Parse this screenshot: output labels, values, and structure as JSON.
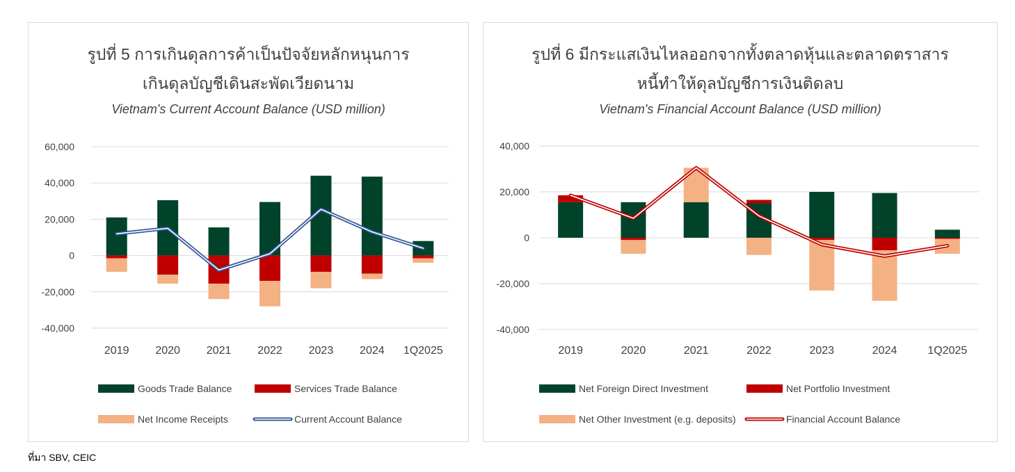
{
  "source_note": "ที่มา SBV, CEIC",
  "chart_data": [
    {
      "type": "bar",
      "stacked": true,
      "title_line1": "รูปที่ 5 การเกินดุลการค้าเป็นปัจจัยหลักหนุนการ",
      "title_line2": "เกินดุลบัญชีเดินสะพัดเวียดนาม",
      "subtitle": "Vietnam's Current Account Balance (USD million)",
      "xlabel": "",
      "ylabel": "",
      "categories": [
        "2019",
        "2020",
        "2021",
        "2022",
        "2023",
        "2024",
        "1Q2025"
      ],
      "ylim": [
        -40000,
        60000
      ],
      "yticks": [
        -40000,
        -20000,
        0,
        20000,
        40000,
        60000
      ],
      "ytick_labels": [
        "-40,000",
        "-20,000",
        "0",
        "20,000",
        "40,000",
        "60,000"
      ],
      "grid": true,
      "legend_position": "bottom",
      "series": [
        {
          "name": "Goods Trade Balance",
          "kind": "bar",
          "color": "#00432a",
          "values": [
            21000,
            30500,
            15500,
            29500,
            44000,
            43500,
            8000
          ]
        },
        {
          "name": "Services Trade Balance",
          "kind": "bar",
          "color": "#c00000",
          "values": [
            -1500,
            -10500,
            -15500,
            -14000,
            -9000,
            -10000,
            -1500
          ]
        },
        {
          "name": "Net Income Receipts",
          "kind": "bar",
          "color": "#f4b183",
          "values": [
            -7500,
            -5000,
            -8500,
            -14000,
            -9000,
            -3000,
            -2500
          ]
        },
        {
          "name": "Current Account Balance",
          "kind": "line",
          "color": "#2f5597",
          "values": [
            12000,
            15000,
            -8000,
            1000,
            25500,
            13000,
            4000
          ]
        }
      ]
    },
    {
      "type": "bar",
      "stacked": true,
      "title_line1": "รูปที่ 6 มีกระแสเงินไหลออกจากทั้งตลาดหุ้นและตลาดตราสาร",
      "title_line2": "หนี้ทำให้ดุลบัญชีการเงินติดลบ",
      "subtitle": "Vietnam's Financial Account Balance (USD million)",
      "xlabel": "",
      "ylabel": "",
      "categories": [
        "2019",
        "2020",
        "2021",
        "2022",
        "2023",
        "2024",
        "1Q2025"
      ],
      "ylim": [
        -40000,
        40000
      ],
      "yticks": [
        -40000,
        -20000,
        0,
        20000,
        40000
      ],
      "ytick_labels": [
        "-40,000",
        "-20,000",
        "0",
        "20,000",
        "40,000"
      ],
      "grid": true,
      "legend_position": "bottom",
      "series": [
        {
          "name": "Net Foreign Direct Investment",
          "kind": "bar",
          "color": "#00432a",
          "values": [
            15500,
            15500,
            15500,
            15000,
            20000,
            19500,
            3500
          ]
        },
        {
          "name": "Net Portfolio Investment",
          "kind": "bar",
          "color": "#c00000",
          "values": [
            3000,
            -1000,
            0,
            1500,
            -1000,
            -5500,
            -500
          ]
        },
        {
          "name": "Net Other Investment (e.g. deposits)",
          "kind": "bar",
          "color": "#f4b183",
          "values": [
            0,
            -6000,
            15000,
            -7500,
            -22000,
            -22000,
            -6500
          ]
        },
        {
          "name": "Financial Account Balance",
          "kind": "line",
          "color": "#c00000",
          "values": [
            18500,
            8500,
            30500,
            9500,
            -3000,
            -8000,
            -3500
          ]
        }
      ]
    }
  ]
}
